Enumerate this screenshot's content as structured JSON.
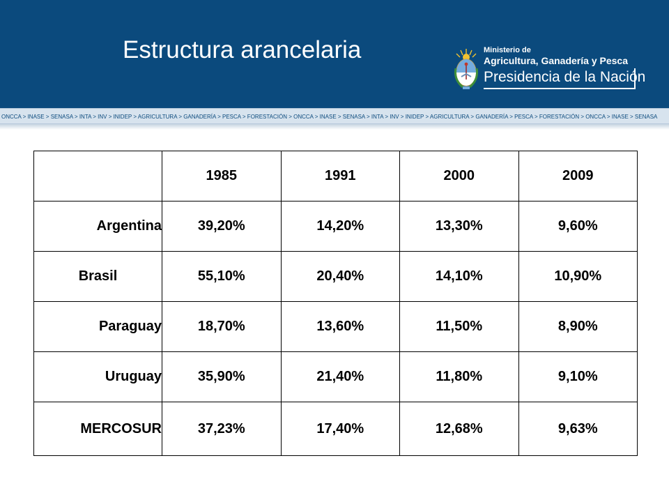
{
  "header": {
    "title": "Estructura arancelaria",
    "logo": {
      "line1": "Ministerio de",
      "line2": "Agricultura, Ganadería y Pesca",
      "line3": "Presidencia de la Nación"
    },
    "ticker": "ONCCA > INASE > SENASA > INTA > INV > INIDEP > AGRICULTURA > GANADERÍA > PESCA > FORESTACIÓN > ONCCA > INASE > SENASA > INTA > INV > INIDEP > AGRICULTURA > GANADERÍA > PESCA > FORESTACIÓN > ONCCA > INASE > SENASA",
    "colors": {
      "band": "#0b4a7d",
      "ticker_bg": "#d7e3ee"
    }
  },
  "table": {
    "corner": "",
    "years": [
      "1985",
      "1991",
      "2000",
      "2009"
    ],
    "rows": [
      {
        "country": "Argentina",
        "values": [
          "39,20%",
          "14,20%",
          "13,30%",
          "9,60%"
        ]
      },
      {
        "country": "Brasil",
        "values": [
          "55,10%",
          "20,40%",
          "14,10%",
          "10,90%"
        ]
      },
      {
        "country": "Paraguay",
        "values": [
          "18,70%",
          "13,60%",
          "11,50%",
          "8,90%"
        ]
      },
      {
        "country": "Uruguay",
        "values": [
          "35,90%",
          "21,40%",
          "11,80%",
          "9,10%"
        ]
      },
      {
        "country": "MERCOSUR",
        "values": [
          "37,23%",
          "17,40%",
          "12,68%",
          "9,63%"
        ]
      }
    ]
  }
}
